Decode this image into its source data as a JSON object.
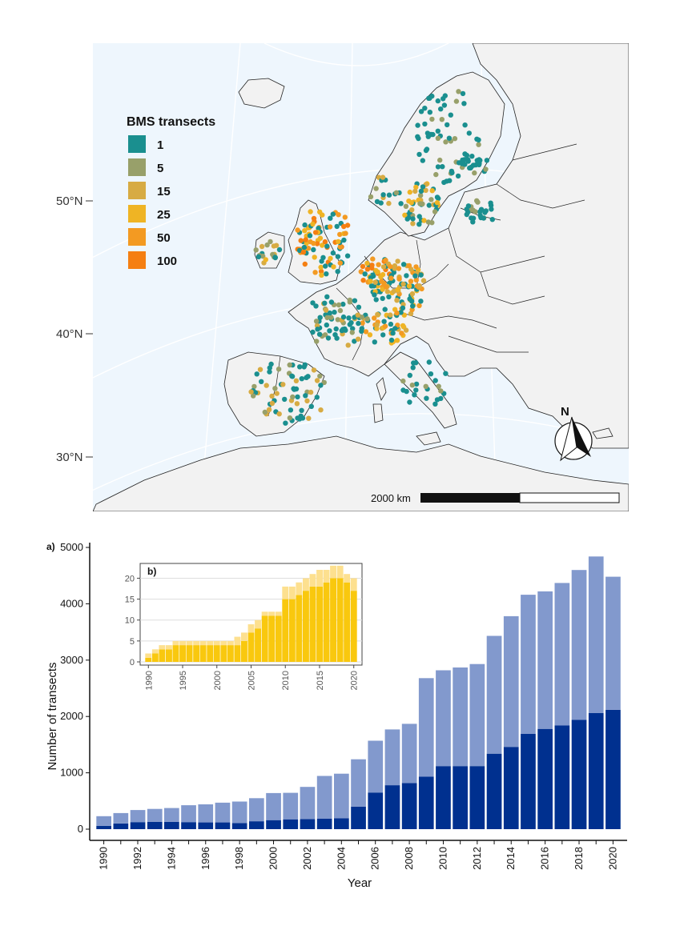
{
  "map": {
    "legend_title": "BMS transects",
    "legend": [
      {
        "label": "1",
        "color": "#1a8f8f"
      },
      {
        "label": "5",
        "color": "#98a06a"
      },
      {
        "label": "15",
        "color": "#d7ab43"
      },
      {
        "label": "25",
        "color": "#efb424"
      },
      {
        "label": "50",
        "color": "#f39a22"
      },
      {
        "label": "100",
        "color": "#f57f12"
      }
    ],
    "lat_labels": [
      "50°N",
      "40°N",
      "30°N"
    ],
    "scale_label": "2000 km",
    "north_label": "N",
    "colors": {
      "sea": "#eef6fd",
      "land": "#f2f2f2",
      "border": "#222222"
    }
  },
  "chart_data": [
    {
      "type": "bar",
      "panel_label": "a)",
      "xlabel": "Year",
      "ylabel": "Number of transects",
      "ylim": [
        0,
        5000
      ],
      "yticks": [
        0,
        1000,
        2000,
        3000,
        4000,
        5000
      ],
      "xtick_labels": [
        "1990",
        "1992",
        "1994",
        "1996",
        "1998",
        "2000",
        "2002",
        "2004",
        "2006",
        "2008",
        "2010",
        "2012",
        "2014",
        "2016",
        "2018",
        "2020"
      ],
      "categories": [
        1990,
        1991,
        1992,
        1993,
        1994,
        1995,
        1996,
        1997,
        1998,
        1999,
        2000,
        2001,
        2002,
        2003,
        2004,
        2005,
        2006,
        2007,
        2008,
        2009,
        2010,
        2011,
        2012,
        2013,
        2014,
        2015,
        2016,
        2017,
        2018,
        2019,
        2020
      ],
      "stacked": true,
      "series": [
        {
          "color": "#00308f",
          "values": [
            60,
            100,
            125,
            130,
            130,
            125,
            120,
            120,
            110,
            140,
            160,
            175,
            180,
            185,
            195,
            400,
            650,
            780,
            820,
            930,
            1120,
            1120,
            1120,
            1340,
            1460,
            1690,
            1780,
            1840,
            1940,
            2060,
            2120
          ]
        },
        {
          "color": "#8299cd",
          "values": [
            170,
            185,
            215,
            230,
            245,
            300,
            320,
            350,
            380,
            410,
            480,
            470,
            570,
            760,
            790,
            840,
            920,
            990,
            1050,
            1750,
            1700,
            1750,
            1810,
            2090,
            2320,
            2470,
            2440,
            2530,
            2660,
            2780,
            2360
          ]
        }
      ],
      "grid": false
    },
    {
      "type": "bar",
      "panel_label": "b)",
      "ylim": [
        0,
        22
      ],
      "yticks": [
        0,
        5,
        10,
        15,
        20
      ],
      "xtick_labels": [
        "1990",
        "1995",
        "2000",
        "2005",
        "2010",
        "2015",
        "2020"
      ],
      "categories": [
        1990,
        1991,
        1992,
        1993,
        1994,
        1995,
        1996,
        1997,
        1998,
        1999,
        2000,
        2001,
        2002,
        2003,
        2004,
        2005,
        2006,
        2007,
        2008,
        2009,
        2010,
        2011,
        2012,
        2013,
        2014,
        2015,
        2016,
        2017,
        2018,
        2019,
        2020
      ],
      "stacked": true,
      "series": [
        {
          "color": "#f9c80e",
          "values": [
            1,
            2,
            3,
            3,
            4,
            4,
            4,
            4,
            4,
            4,
            4,
            4,
            4,
            4,
            5,
            7,
            8,
            11,
            11,
            11,
            15,
            15,
            16,
            17,
            18,
            18,
            19,
            20,
            20,
            19,
            17
          ]
        },
        {
          "color": "#fde08f",
          "values": [
            1,
            1,
            1,
            1,
            1,
            1,
            1,
            1,
            1,
            1,
            1,
            1,
            1,
            2,
            2,
            2,
            2,
            1,
            1,
            1,
            3,
            3,
            3,
            3,
            3,
            4,
            3,
            3,
            3,
            2,
            3
          ]
        }
      ],
      "grid": true
    }
  ]
}
